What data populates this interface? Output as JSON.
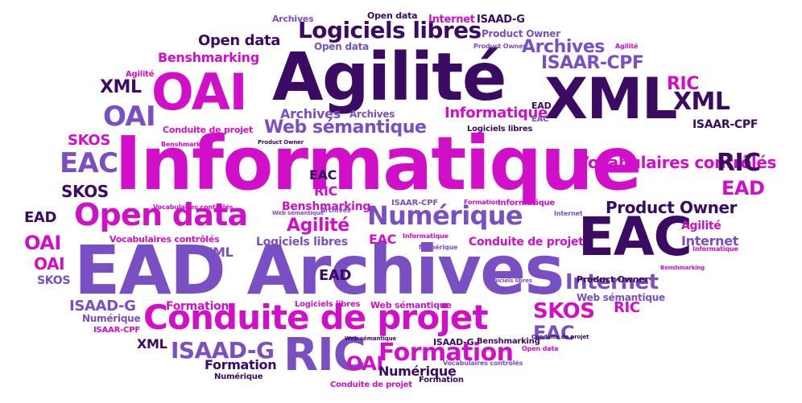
{
  "words": {
    "informatique_big": "Informatique",
    "ead_archives_big": "EAD Archives",
    "agilite_big": "Agilité",
    "xml_big": "XML",
    "oai_big": "OAI",
    "eac_big": "EAC",
    "conduite_big": "Conduite de projet",
    "open_data_big": "Open data",
    "numerique_big": "Numérique",
    "ric_big": "RIC",
    "logiciels_big": "Logiciels libres",
    "web_semantique_big": "Web sémantique",
    "formation_big": "Formation",
    "isaad_big": "ISAAD-G",
    "isaar_big": "ISAAR-CPF",
    "vocab_big": "Vocabulaires contrôlés",
    "product_owner_big": "Product Owner",
    "benshmarking_big": "Benshmarking",
    "skos_big": "SKOS",
    "internet_big": "Internet",
    "archives": "Archives",
    "open_data": "Open data",
    "internet": "Internet",
    "isaad": "ISAAD-G",
    "product_owner": "Product Owner",
    "agilite": "Agilité",
    "xml": "XML",
    "oai": "OAI",
    "ead": "EAD",
    "eac": "EAC",
    "ric": "RIC",
    "skos": "SKOS",
    "isaar": "ISAAR-CPF",
    "informatique": "Informatique",
    "conduite": "Conduite de projet",
    "web_semantique": "Web sémantique",
    "logiciels": "Logiciels libres",
    "vocab": "Vocabulaires contrôlés",
    "benshmarking": "Benshmarking",
    "formation": "Formation",
    "numerique": "Numérique"
  }
}
